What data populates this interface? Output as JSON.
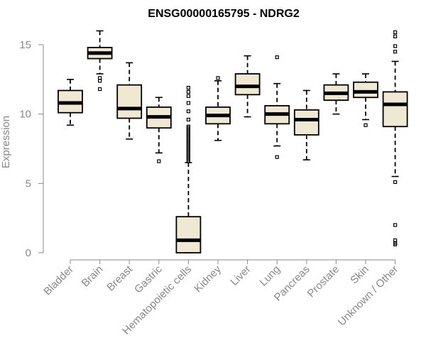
{
  "chart_data": {
    "type": "boxplot",
    "title": "ENSG00000165795 - NDRG2",
    "ylabel": "Expression",
    "xlabel": "",
    "ylim": [
      0,
      16
    ],
    "yticks": [
      0,
      5,
      10,
      15
    ],
    "grid": false,
    "legend": "none",
    "box_fill": "#efe8d2",
    "box_stroke": "#000000",
    "median_color": "#000000",
    "axis_color": "#888888",
    "categories": [
      "Bladder",
      "Brain",
      "Breast",
      "Gastric",
      "Hematopoietic cells",
      "Kidney",
      "Liver",
      "Lung",
      "Pancreas",
      "Prostate",
      "Skin",
      "Unknown / Other"
    ],
    "boxes": [
      {
        "category": "Bladder",
        "whisker_low": 9.2,
        "q1": 10.1,
        "median": 10.8,
        "q3": 11.7,
        "whisker_high": 12.5,
        "outliers": []
      },
      {
        "category": "Brain",
        "whisker_low": 12.9,
        "q1": 14.0,
        "median": 14.4,
        "q3": 14.8,
        "whisker_high": 16.0,
        "outliers": [
          12.6,
          12.4,
          11.8
        ]
      },
      {
        "category": "Breast",
        "whisker_low": 8.2,
        "q1": 9.7,
        "median": 10.4,
        "q3": 12.1,
        "whisker_high": 13.7,
        "outliers": []
      },
      {
        "category": "Gastric",
        "whisker_low": 7.2,
        "q1": 9.0,
        "median": 9.8,
        "q3": 10.5,
        "whisker_high": 11.2,
        "outliers": [
          6.6
        ]
      },
      {
        "category": "Hematopoietic cells",
        "whisker_low": 0.0,
        "q1": 0.0,
        "median": 0.9,
        "q3": 2.6,
        "whisker_high": 6.5,
        "outliers": [
          6.6,
          6.7,
          6.8,
          6.9,
          7.0,
          7.1,
          7.2,
          7.3,
          7.4,
          7.5,
          7.6,
          7.7,
          7.8,
          7.9,
          8.0,
          8.1,
          8.2,
          8.3,
          8.4,
          8.5,
          8.6,
          8.7,
          8.8,
          8.9,
          9.0,
          9.1,
          9.6,
          10.2,
          10.8,
          11.3,
          11.6,
          11.9
        ]
      },
      {
        "category": "Kidney",
        "whisker_low": 8.1,
        "q1": 9.3,
        "median": 9.9,
        "q3": 10.5,
        "whisker_high": 12.4,
        "outliers": [
          12.6
        ]
      },
      {
        "category": "Liver",
        "whisker_low": 9.8,
        "q1": 11.4,
        "median": 12.0,
        "q3": 12.9,
        "whisker_high": 14.2,
        "outliers": []
      },
      {
        "category": "Lung",
        "whisker_low": 7.7,
        "q1": 9.3,
        "median": 10.0,
        "q3": 10.6,
        "whisker_high": 12.2,
        "outliers": [
          14.1,
          6.9
        ]
      },
      {
        "category": "Pancreas",
        "whisker_low": 6.7,
        "q1": 8.5,
        "median": 9.6,
        "q3": 10.3,
        "whisker_high": 11.7,
        "outliers": []
      },
      {
        "category": "Prostate",
        "whisker_low": 10.0,
        "q1": 11.0,
        "median": 11.5,
        "q3": 12.1,
        "whisker_high": 12.9,
        "outliers": []
      },
      {
        "category": "Skin",
        "whisker_low": 9.6,
        "q1": 11.2,
        "median": 11.6,
        "q3": 12.3,
        "whisker_high": 12.9,
        "outliers": [
          9.2
        ]
      },
      {
        "category": "Unknown / Other",
        "whisker_low": 5.5,
        "q1": 9.1,
        "median": 10.7,
        "q3": 11.6,
        "whisker_high": 13.8,
        "outliers": [
          15.9,
          15.6,
          14.9,
          14.5,
          5.1,
          2.0,
          0.9,
          0.7,
          0.6
        ]
      }
    ]
  }
}
